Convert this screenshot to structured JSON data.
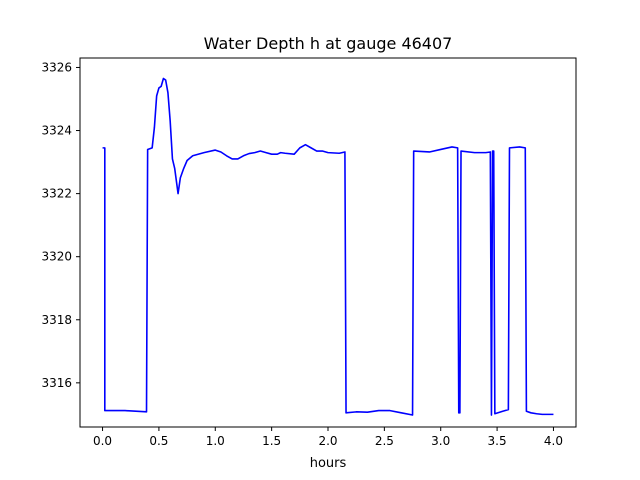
{
  "chart_data": {
    "type": "line",
    "title": "Water Depth h at gauge 46407",
    "xlabel": "hours",
    "ylabel": "",
    "xlim": [
      -0.2,
      4.2
    ],
    "ylim": [
      3314.6,
      3326.3
    ],
    "xticks": [
      0.0,
      0.5,
      1.0,
      1.5,
      2.0,
      2.5,
      3.0,
      3.5,
      4.0
    ],
    "xtick_labels": [
      "0.0",
      "0.5",
      "1.0",
      "1.5",
      "2.0",
      "2.5",
      "3.0",
      "3.5",
      "4.0"
    ],
    "yticks": [
      3316,
      3318,
      3320,
      3322,
      3324,
      3326
    ],
    "ytick_labels": [
      "3316",
      "3318",
      "3320",
      "3322",
      "3324",
      "3326"
    ],
    "grid": false,
    "series": [
      {
        "color": "#0000ff",
        "points": [
          [
            0.0,
            3323.45
          ],
          [
            0.02,
            3323.45
          ],
          [
            0.02,
            3315.12
          ],
          [
            0.2,
            3315.12
          ],
          [
            0.39,
            3315.08
          ],
          [
            0.4,
            3323.4
          ],
          [
            0.44,
            3323.45
          ],
          [
            0.46,
            3324.1
          ],
          [
            0.48,
            3325.1
          ],
          [
            0.5,
            3325.35
          ],
          [
            0.52,
            3325.4
          ],
          [
            0.54,
            3325.65
          ],
          [
            0.56,
            3325.6
          ],
          [
            0.58,
            3325.2
          ],
          [
            0.6,
            3324.3
          ],
          [
            0.62,
            3323.1
          ],
          [
            0.64,
            3322.8
          ],
          [
            0.67,
            3322.0
          ],
          [
            0.69,
            3322.5
          ],
          [
            0.72,
            3322.8
          ],
          [
            0.75,
            3323.05
          ],
          [
            0.8,
            3323.2
          ],
          [
            0.9,
            3323.3
          ],
          [
            1.0,
            3323.38
          ],
          [
            1.05,
            3323.32
          ],
          [
            1.1,
            3323.2
          ],
          [
            1.15,
            3323.1
          ],
          [
            1.2,
            3323.1
          ],
          [
            1.25,
            3323.2
          ],
          [
            1.3,
            3323.27
          ],
          [
            1.35,
            3323.3
          ],
          [
            1.4,
            3323.35
          ],
          [
            1.45,
            3323.3
          ],
          [
            1.5,
            3323.25
          ],
          [
            1.55,
            3323.25
          ],
          [
            1.58,
            3323.3
          ],
          [
            1.62,
            3323.28
          ],
          [
            1.7,
            3323.25
          ],
          [
            1.75,
            3323.45
          ],
          [
            1.8,
            3323.55
          ],
          [
            1.85,
            3323.45
          ],
          [
            1.9,
            3323.35
          ],
          [
            1.95,
            3323.35
          ],
          [
            2.0,
            3323.3
          ],
          [
            2.1,
            3323.28
          ],
          [
            2.15,
            3323.32
          ],
          [
            2.16,
            3315.05
          ],
          [
            2.25,
            3315.08
          ],
          [
            2.35,
            3315.07
          ],
          [
            2.45,
            3315.12
          ],
          [
            2.55,
            3315.12
          ],
          [
            2.65,
            3315.05
          ],
          [
            2.75,
            3314.98
          ],
          [
            2.76,
            3323.35
          ],
          [
            2.9,
            3323.32
          ],
          [
            3.0,
            3323.4
          ],
          [
            3.1,
            3323.48
          ],
          [
            3.15,
            3323.45
          ],
          [
            3.16,
            3315.05
          ],
          [
            3.17,
            3315.05
          ],
          [
            3.18,
            3323.35
          ],
          [
            3.3,
            3323.3
          ],
          [
            3.4,
            3323.3
          ],
          [
            3.44,
            3323.32
          ],
          [
            3.45,
            3314.98
          ],
          [
            3.46,
            3323.35
          ],
          [
            3.47,
            3323.35
          ],
          [
            3.48,
            3315.02
          ],
          [
            3.55,
            3315.1
          ],
          [
            3.6,
            3315.15
          ],
          [
            3.61,
            3323.45
          ],
          [
            3.7,
            3323.48
          ],
          [
            3.75,
            3323.45
          ],
          [
            3.76,
            3315.1
          ],
          [
            3.8,
            3315.05
          ],
          [
            3.85,
            3315.02
          ],
          [
            3.9,
            3315.0
          ],
          [
            4.0,
            3315.0
          ]
        ]
      }
    ]
  }
}
